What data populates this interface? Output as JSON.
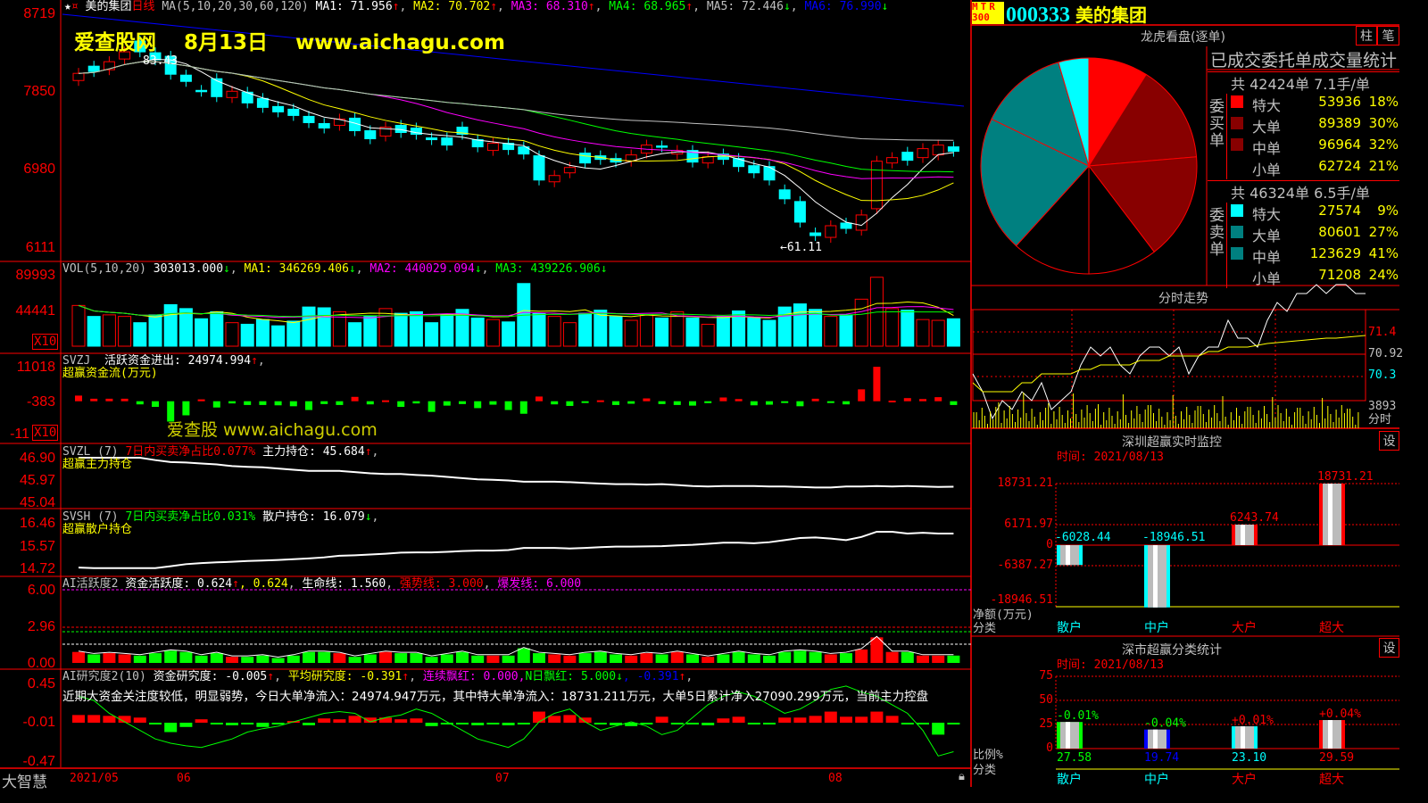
{
  "header": {
    "stock_name": "美的集团",
    "period": "日线",
    "ma_label": "MA(5,10,20,30,60,120)",
    "ma": [
      {
        "label": "MA1: 71.956",
        "arrow": "↑",
        "color": "#ffffff"
      },
      {
        "label": "MA2: 70.702",
        "arrow": "↑",
        "color": "#ffff00"
      },
      {
        "label": "MA3: 68.310",
        "arrow": "↑",
        "color": "#ff00ff"
      },
      {
        "label": "MA4: 68.965",
        "arrow": "↑",
        "color": "#00ff00"
      },
      {
        "label": "MA5: 72.446",
        "arrow": "↓",
        "color": "#c0c0c0"
      },
      {
        "label": "MA6: 76.990",
        "arrow": "↓",
        "color": "#0000ff"
      }
    ]
  },
  "watermark": {
    "top": "爱查股网　 8月13日　 www.aichagu.com",
    "mid": "爱查股 www.aichagu.com"
  },
  "price_axis": [
    "8719",
    "7850",
    "6980",
    "6111"
  ],
  "price_annotations": {
    "high": "83.43",
    "low": "61.11"
  },
  "candles": {
    "open": [
      79.8,
      81.4,
      81.0,
      82.2,
      84.2,
      82.9,
      82.5,
      80.4,
      78.7,
      80.0,
      77.9,
      78.5,
      77.8,
      76.9,
      76.6,
      75.8,
      75.0,
      74.8,
      75.6,
      74.2,
      73.6,
      74.8,
      74.5,
      73.4,
      73.4,
      74.6,
      73.2,
      72.0,
      72.8,
      72.4,
      71.4,
      68.5,
      69.5,
      71.7,
      71.4,
      71.1,
      70.8,
      71.7,
      72.5,
      71.6,
      72.0,
      70.6,
      71.6,
      71.1,
      70.3,
      70.2,
      67.6,
      66.3,
      62.8,
      62.3,
      63.9,
      63.1,
      65.5,
      70.6,
      71.8,
      71.2,
      71.5,
      72.4
    ],
    "close": [
      80.6,
      80.8,
      81.9,
      83.0,
      83.0,
      82.1,
      80.5,
      79.7,
      78.6,
      78.0,
      78.6,
      77.3,
      76.8,
      76.3,
      75.9,
      75.1,
      74.5,
      75.5,
      74.2,
      73.3,
      74.6,
      74.0,
      73.8,
      73.2,
      72.6,
      73.8,
      72.4,
      72.8,
      72.1,
      71.6,
      68.7,
      69.2,
      70.1,
      70.6,
      71.0,
      70.7,
      71.5,
      72.6,
      72.4,
      72.0,
      70.7,
      71.3,
      71.0,
      70.2,
      69.5,
      68.7,
      66.6,
      64.0,
      62.5,
      63.6,
      63.3,
      64.8,
      70.8,
      71.2,
      70.9,
      72.2,
      72.6,
      71.9
    ]
  },
  "volume": {
    "title": "VOL(5,10,20)",
    "value": "303013.000",
    "arrow": "↓",
    "ma": [
      {
        "label": "MA1: 346269.406",
        "arrow": "↓",
        "color": "#ffff00"
      },
      {
        "label": "MA2: 440029.094",
        "arrow": "↓",
        "color": "#ff00ff"
      },
      {
        "label": "MA3: 439226.906",
        "arrow": "↓",
        "color": "#00ff00"
      }
    ],
    "axis": [
      "89993",
      "44441"
    ],
    "unit": "X10",
    "values": [
      52000,
      38000,
      40000,
      38000,
      30000,
      40000,
      53000,
      48000,
      35000,
      44000,
      30000,
      28000,
      34000,
      26000,
      32000,
      50000,
      49000,
      44000,
      30000,
      38000,
      48000,
      42000,
      44000,
      30000,
      40000,
      47000,
      36000,
      34000,
      31000,
      80000,
      42000,
      38000,
      30000,
      42000,
      46000,
      38000,
      33000,
      40000,
      36000,
      44000,
      36000,
      28000,
      38000,
      45000,
      36000,
      33000,
      50000,
      54000,
      47000,
      38000,
      40000,
      60000,
      88000,
      48000,
      46000,
      34000,
      33000,
      35000
    ]
  },
  "svzj": {
    "title": "SVZJ",
    "label": "活跃资金进出: 24974.994",
    "arrow": "↑",
    "subtitle": "超赢资金流(万元)",
    "axis": [
      "11018",
      "-383",
      "-11"
    ],
    "unit": "X10",
    "values": [
      1800,
      800,
      800,
      800,
      -1000,
      -1800,
      -6500,
      -4500,
      600,
      -2000,
      -700,
      -1200,
      -1200,
      -1300,
      -1600,
      -2800,
      -900,
      -1200,
      1400,
      -1000,
      300,
      -1800,
      -700,
      -3400,
      -1400,
      -900,
      -2200,
      -1100,
      -2800,
      -4000,
      1500,
      -1000,
      -1500,
      -500,
      300,
      -1200,
      -800,
      900,
      -900,
      -1200,
      -1400,
      -600,
      1200,
      700,
      -1300,
      -1100,
      -500,
      -1600,
      800,
      -500,
      -1000,
      3800,
      11000,
      200,
      1000,
      700,
      1300,
      -1200
    ]
  },
  "svzl": {
    "title": "SVZL (7)",
    "ratio": "7日内买卖净占比0.077%",
    "label": "主力持仓: 45.684",
    "arrow": "↑",
    "subtitle": "超赢主力持仓",
    "axis": [
      "46.90",
      "45.97",
      "45.04"
    ],
    "values": [
      46.9,
      46.9,
      46.9,
      46.9,
      46.9,
      46.8,
      46.72,
      46.7,
      46.66,
      46.62,
      46.55,
      46.52,
      46.5,
      46.45,
      46.4,
      46.35,
      46.35,
      46.35,
      46.3,
      46.25,
      46.22,
      46.22,
      46.18,
      46.15,
      46.1,
      46.05,
      46.0,
      45.98,
      45.95,
      45.9,
      45.9,
      45.9,
      45.88,
      45.85,
      45.82,
      45.8,
      45.8,
      45.78,
      45.8,
      45.76,
      45.72,
      45.7,
      45.72,
      45.72,
      45.72,
      45.7,
      45.7,
      45.68,
      45.66,
      45.66,
      45.7,
      45.7,
      45.72,
      45.7,
      45.72,
      45.7,
      45.68,
      45.69
    ]
  },
  "svsh": {
    "title": "SVSH (7)",
    "ratio": "7日内买卖净占比0.031%",
    "label": "散户持仓: 16.079",
    "arrow": "↓",
    "subtitle": "超赢散户持仓",
    "axis": [
      "16.46",
      "15.57",
      "14.72"
    ],
    "values": [
      14.75,
      14.73,
      14.73,
      14.73,
      14.73,
      14.73,
      14.8,
      14.88,
      14.92,
      14.95,
      14.97,
      15.0,
      15.02,
      15.04,
      15.07,
      15.1,
      15.14,
      15.2,
      15.22,
      15.25,
      15.28,
      15.32,
      15.33,
      15.33,
      15.35,
      15.38,
      15.4,
      15.4,
      15.42,
      15.5,
      15.5,
      15.5,
      15.48,
      15.5,
      15.53,
      15.55,
      15.55,
      15.56,
      15.57,
      15.6,
      15.62,
      15.66,
      15.7,
      15.7,
      15.68,
      15.72,
      15.8,
      15.88,
      15.9,
      15.86,
      15.8,
      15.92,
      16.12,
      16.12,
      16.05,
      16.08,
      16.05,
      16.05
    ]
  },
  "ai_activity": {
    "title": "AI活跃度2",
    "label": "资金活跃度: 0.624",
    "arrow": "↑",
    "value2": ", 0.624",
    "life": "生命线: 1.560",
    "strong": "强势线: 3.000",
    "burst": "爆发线: 6.000",
    "axis": [
      "6.00",
      "2.96",
      "0.00"
    ],
    "values": [
      0.9,
      0.7,
      0.8,
      0.7,
      0.6,
      0.8,
      1.0,
      0.9,
      0.6,
      0.8,
      0.5,
      0.5,
      0.6,
      0.4,
      0.6,
      0.9,
      0.9,
      0.8,
      0.5,
      0.7,
      0.9,
      0.8,
      0.8,
      0.5,
      0.7,
      0.9,
      0.6,
      0.6,
      0.6,
      1.2,
      0.8,
      0.7,
      0.6,
      0.8,
      0.9,
      0.7,
      0.6,
      0.8,
      0.7,
      0.9,
      0.7,
      0.5,
      0.7,
      0.9,
      0.7,
      0.6,
      0.9,
      1.0,
      0.9,
      0.7,
      0.8,
      1.1,
      2.1,
      0.9,
      0.9,
      0.6,
      0.6,
      0.6
    ]
  },
  "ai_research": {
    "title": "AI研究度2(10)",
    "label": "资金研究度: -0.005",
    "arrow": "↑",
    "avg": "平均研究度: -0.391",
    "avg_arrow": "↑",
    "red": "连续飘红: 0.000,",
    "nred": "N日飘红: 5.000",
    "nred_arrow": "↓",
    "v4": ", -0.391",
    "v4_arrow": "↑",
    "summary": "近期大资金关注度较低，明显弱势，今日大单净流入：24974.947万元，其中特大单净流入：18731.211万元，大单5日累计净入27090.299万元，当前主力控盘",
    "axis": [
      "0.45",
      "-0.01",
      "-0.47"
    ],
    "bars": [
      0.08,
      0.08,
      0.07,
      0.07,
      0.05,
      -0.02,
      -0.12,
      -0.06,
      0.03,
      -0.02,
      -0.04,
      -0.01,
      -0.06,
      -0.03,
      0.01,
      -0.04,
      0.04,
      0.03,
      0.07,
      0.05,
      0.05,
      0.03,
      0.04,
      -0.05,
      -0.03,
      -0.02,
      -0.04,
      -0.02,
      -0.04,
      -0.03,
      0.12,
      0.07,
      0.08,
      0.05,
      -0.02,
      -0.04,
      -0.05,
      -0.03,
      0.06,
      -0.02,
      -0.03,
      -0.04,
      0.04,
      0.06,
      -0.02,
      -0.02,
      0.05,
      0.05,
      0.07,
      0.12,
      0.06,
      0.06,
      0.12,
      0.07,
      -0.02,
      -0.02,
      -0.15,
      -0.02
    ],
    "line": [
      0.3,
      0.25,
      0.1,
      0.0,
      -0.1,
      -0.2,
      -0.25,
      -0.28,
      -0.3,
      -0.25,
      -0.2,
      -0.12,
      -0.08,
      -0.05,
      0.0,
      0.05,
      0.1,
      0.12,
      0.1,
      0.0,
      0.05,
      0.08,
      0.15,
      0.1,
      0.0,
      -0.1,
      -0.2,
      -0.25,
      -0.3,
      -0.2,
      0.0,
      0.1,
      0.15,
      0.0,
      -0.1,
      -0.05,
      0.0,
      -0.05,
      -0.15,
      -0.1,
      0.05,
      0.2,
      0.3,
      0.35,
      0.3,
      0.2,
      0.1,
      0.15,
      0.25,
      0.38,
      0.42,
      0.35,
      0.3,
      0.2,
      0.1,
      -0.1,
      -0.4,
      -0.35
    ]
  },
  "date_axis": [
    "2021/05",
    "06",
    "07",
    "08"
  ],
  "app_name": "大智慧",
  "right": {
    "badge_top": "MTR",
    "badge_bottom": "300",
    "code": "000333",
    "name": "美的集团",
    "lhkp": {
      "title": "龙虎看盘(逐单)",
      "tabs": [
        "柱",
        "笔"
      ],
      "stats_title": "已成交委托单成交量统计",
      "buy": {
        "label": "委买单",
        "summary": "共 42424单 7.1手/单",
        "rows": [
          {
            "name": "特大",
            "value": "53936",
            "pct": "18%",
            "color": "#ff0000",
            "v": 53936
          },
          {
            "name": "大单",
            "value": "89389",
            "pct": "30%",
            "color": "#880000",
            "v": 89389
          },
          {
            "name": "中单",
            "value": "96964",
            "pct": "32%",
            "color": "#880000",
            "v": 96964
          },
          {
            "name": "小单",
            "value": "62724",
            "pct": "21%",
            "color": "#000000",
            "v": 62724
          }
        ]
      },
      "sell": {
        "label": "委卖单",
        "summary": "共 46324单 6.5手/单",
        "rows": [
          {
            "name": "特大",
            "value": "27574",
            "pct": "9%",
            "color": "#00ffff",
            "v": 27574
          },
          {
            "name": "大单",
            "value": "80601",
            "pct": "27%",
            "color": "#008080",
            "v": 80601
          },
          {
            "name": "中单",
            "value": "123629",
            "pct": "41%",
            "color": "#008080",
            "v": 123629
          },
          {
            "name": "小单",
            "value": "71208",
            "pct": "24%",
            "color": "#000000",
            "v": 71208
          }
        ]
      }
    },
    "intraday": {
      "title": "分时走势",
      "labels": [
        "71.4",
        "70.92",
        "70.3",
        "3893",
        "分时"
      ],
      "price": [
        70.7,
        70.5,
        70.2,
        70.4,
        70.3,
        70.5,
        70.4,
        70.6,
        70.3,
        70.4,
        70.5,
        70.8,
        71.0,
        70.9,
        71.0,
        70.8,
        70.7,
        70.9,
        71.0,
        71.0,
        70.9,
        71.0,
        70.7,
        70.9,
        71.0,
        71.0,
        71.3,
        71.1,
        71.1,
        71.0,
        71.3,
        71.5,
        71.4,
        71.6,
        71.6,
        71.7,
        71.6,
        71.7,
        71.7,
        71.6,
        71.6
      ],
      "avg": [
        70.6,
        70.5,
        70.5,
        70.5,
        70.5,
        70.6,
        70.6,
        70.7,
        70.7,
        70.7,
        70.7,
        70.75,
        70.75,
        70.8,
        70.8,
        70.8,
        70.8,
        70.85,
        70.85,
        70.85,
        70.9,
        70.9,
        70.9,
        70.9,
        70.95,
        70.95,
        71.0,
        71.0,
        71.0,
        71.02,
        71.04,
        71.05,
        71.06,
        71.07,
        71.08,
        71.09,
        71.1,
        71.1,
        71.11,
        71.12,
        71.13
      ]
    },
    "sz_monitor": {
      "title": "深圳超赢实时监控",
      "time": "时间: 2021/08/13",
      "axis": [
        "18731.21",
        "6171.97",
        "0",
        "-6387.27",
        "-18946.51"
      ],
      "ylabel": "净额(万元)",
      "xlabel": "分类",
      "cats": [
        "散户",
        "中户",
        "大户",
        "超大"
      ],
      "cat_colors": [
        "#00ffff",
        "#00ffff",
        "#ff0000",
        "#ff0000"
      ],
      "values": [
        -6028.44,
        -18946.51,
        6243.74,
        18731.21
      ],
      "labels": [
        "-6028.44",
        "-18946.51",
        "6243.74",
        "18731.21"
      ],
      "settings": "设"
    },
    "sz_class": {
      "title": "深市超赢分类统计",
      "time": "时间: 2021/08/13",
      "axis": [
        "75",
        "50",
        "25",
        "0"
      ],
      "ylabel": "比例%",
      "xlabel": "分类",
      "cats": [
        "散户",
        "中户",
        "大户",
        "超大"
      ],
      "values": [
        27.58,
        19.74,
        23.1,
        29.59
      ],
      "labels": [
        "27.58",
        "19.74",
        "23.10",
        "29.59"
      ],
      "changes": [
        "-0.01%",
        "-0.04%",
        "+0.01%",
        "+0.04%"
      ],
      "colors": [
        "#00ff00",
        "#0000ff",
        "#00ffff",
        "#ff0000"
      ],
      "change_colors": [
        "#00ff00",
        "#00ff00",
        "#ff0000",
        "#ff0000"
      ],
      "settings": "设"
    }
  }
}
